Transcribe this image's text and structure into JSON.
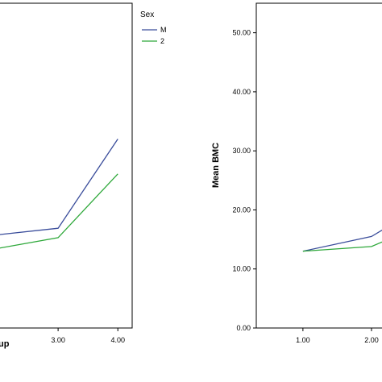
{
  "chart_data": [
    {
      "type": "line",
      "title": "",
      "xlabel": "up",
      "ylabel": "",
      "x": [
        "3.00",
        "4.00"
      ],
      "xlim": [
        2,
        4.24
      ],
      "ylim": [
        0,
        55
      ],
      "grid": false,
      "series": [
        {
          "name": "M",
          "x": [
            2,
            3,
            4
          ],
          "values": [
            15.8,
            16.9,
            32.0
          ]
        },
        {
          "name": "2",
          "x": [
            2,
            3,
            4
          ],
          "values": [
            13.5,
            15.3,
            26.1
          ]
        }
      ],
      "legend": {
        "title": "Sex",
        "placement": "top-right",
        "entries": [
          "M",
          "2"
        ]
      }
    },
    {
      "type": "line",
      "title": "",
      "xlabel": "",
      "ylabel": "Mean BMC",
      "x": [
        "1.00",
        "2.00"
      ],
      "yticks": [
        "0.00",
        "10.00",
        "20.00",
        "30.00",
        "40.00",
        "50.00"
      ],
      "xlim": [
        0.32,
        2.2
      ],
      "ylim": [
        0,
        55
      ],
      "grid": false,
      "series": [
        {
          "name": "M",
          "x": [
            1,
            2,
            2.2
          ],
          "values": [
            13.0,
            15.5,
            16.9
          ]
        },
        {
          "name": "2",
          "x": [
            1,
            2,
            2.2
          ],
          "values": [
            13.0,
            13.8,
            14.8
          ]
        }
      ]
    }
  ],
  "colors": {
    "series_m": "#3a4d9b",
    "series_2": "#2ea83a",
    "axis": "#000000",
    "frame": "#000000"
  }
}
